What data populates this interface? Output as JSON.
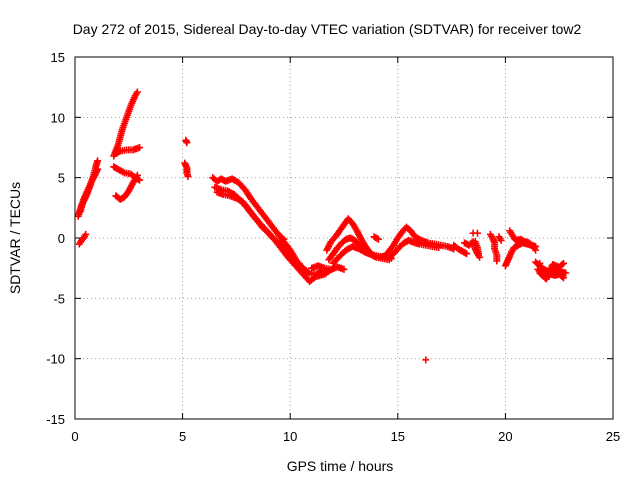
{
  "chart_data": {
    "type": "scatter",
    "title": "Day 272 of 2015, Sidereal Day-to-day VTEC variation (SDTVAR) for receiver tow2",
    "xlabel": "GPS time / hours",
    "ylabel": "SDTVAR / TECUs",
    "xlim": [
      0,
      25
    ],
    "ylim": [
      -15,
      15
    ],
    "xticks": [
      0,
      5,
      10,
      15,
      20,
      25
    ],
    "yticks": [
      -15,
      -10,
      -5,
      0,
      5,
      10,
      15
    ],
    "grid": true,
    "marker": "+",
    "series": [
      {
        "name": "SDTVAR",
        "color": "#ff0000",
        "segments": [
          [
            [
              0.2,
              -0.5
            ],
            [
              0.3,
              -0.2
            ],
            [
              0.4,
              0.0
            ],
            [
              0.5,
              0.3
            ]
          ],
          [
            [
              0.15,
              1.8
            ],
            [
              0.3,
              2.7
            ],
            [
              0.5,
              3.4
            ],
            [
              0.7,
              4.3
            ],
            [
              0.85,
              5.1
            ],
            [
              0.95,
              5.8
            ],
            [
              1.05,
              6.4
            ]
          ],
          [
            [
              0.25,
              2.2
            ],
            [
              0.4,
              3.2
            ],
            [
              0.6,
              4.0
            ],
            [
              0.8,
              4.8
            ],
            [
              0.95,
              5.3
            ],
            [
              1.05,
              5.7
            ]
          ],
          [
            [
              1.8,
              6.8
            ],
            [
              2.0,
              7.7
            ],
            [
              2.2,
              9.0
            ],
            [
              2.4,
              10.0
            ],
            [
              2.6,
              11.0
            ],
            [
              2.8,
              11.8
            ],
            [
              2.9,
              12.1
            ]
          ],
          [
            [
              1.9,
              7.0
            ],
            [
              2.1,
              7.2
            ],
            [
              2.4,
              7.3
            ],
            [
              2.7,
              7.3
            ],
            [
              3.0,
              7.5
            ]
          ],
          [
            [
              1.8,
              5.9
            ],
            [
              2.0,
              5.7
            ],
            [
              2.3,
              5.4
            ],
            [
              2.6,
              5.3
            ],
            [
              2.8,
              5.0
            ],
            [
              3.0,
              4.8
            ]
          ],
          [
            [
              1.9,
              3.5
            ],
            [
              2.1,
              3.2
            ],
            [
              2.3,
              3.4
            ],
            [
              2.5,
              3.9
            ],
            [
              2.7,
              4.6
            ],
            [
              2.9,
              5.2
            ]
          ],
          [
            [
              5.15,
              8.1
            ],
            [
              5.2,
              7.9
            ]
          ],
          [
            [
              5.1,
              6.2
            ],
            [
              5.2,
              5.8
            ],
            [
              5.2,
              5.4
            ],
            [
              5.25,
              5.1
            ]
          ],
          [
            [
              6.4,
              5.0
            ],
            [
              6.6,
              4.7
            ],
            [
              6.8,
              4.9
            ],
            [
              7.0,
              4.7
            ],
            [
              7.3,
              4.9
            ],
            [
              7.6,
              4.6
            ],
            [
              7.9,
              4.0
            ],
            [
              8.2,
              3.2
            ],
            [
              8.5,
              2.5
            ],
            [
              8.8,
              1.8
            ],
            [
              9.1,
              1.1
            ],
            [
              9.4,
              0.4
            ],
            [
              9.7,
              -0.3
            ],
            [
              10.0,
              -1.0
            ],
            [
              10.3,
              -1.9
            ],
            [
              10.6,
              -2.5
            ],
            [
              10.9,
              -2.9
            ],
            [
              11.2,
              -3.0
            ],
            [
              11.5,
              -2.7
            ]
          ],
          [
            [
              6.5,
              4.2
            ],
            [
              6.8,
              4.0
            ],
            [
              7.1,
              3.9
            ],
            [
              7.4,
              3.6
            ],
            [
              7.7,
              3.1
            ],
            [
              8.0,
              2.5
            ],
            [
              8.3,
              1.8
            ],
            [
              8.6,
              1.2
            ],
            [
              8.9,
              0.6
            ],
            [
              9.2,
              0.0
            ],
            [
              9.5,
              -0.5
            ],
            [
              9.8,
              -1.2
            ],
            [
              10.1,
              -1.9
            ],
            [
              10.4,
              -2.6
            ],
            [
              10.7,
              -3.2
            ],
            [
              10.9,
              -3.6
            ],
            [
              11.2,
              -3.2
            ],
            [
              11.6,
              -3.0
            ],
            [
              12.0,
              -2.5
            ]
          ],
          [
            [
              6.6,
              3.8
            ],
            [
              6.9,
              3.6
            ],
            [
              7.2,
              3.5
            ],
            [
              7.5,
              3.3
            ],
            [
              7.8,
              3.0
            ],
            [
              8.1,
              2.3
            ],
            [
              8.4,
              1.6
            ],
            [
              8.7,
              0.9
            ],
            [
              9.0,
              0.4
            ],
            [
              9.3,
              -0.2
            ],
            [
              9.6,
              -0.9
            ],
            [
              9.9,
              -1.6
            ],
            [
              10.2,
              -2.2
            ],
            [
              10.5,
              -2.7
            ],
            [
              10.8,
              -3.0
            ]
          ],
          [
            [
              9.5,
              0.2
            ],
            [
              9.7,
              -0.1
            ]
          ],
          [
            [
              11.0,
              -2.5
            ],
            [
              11.3,
              -2.3
            ],
            [
              11.6,
              -2.5
            ],
            [
              11.9,
              -2.6
            ],
            [
              12.2,
              -2.4
            ],
            [
              12.5,
              -2.6
            ]
          ],
          [
            [
              11.7,
              -1.0
            ],
            [
              11.9,
              -0.3
            ],
            [
              12.1,
              0.1
            ],
            [
              12.3,
              0.6
            ],
            [
              12.5,
              1.1
            ],
            [
              12.7,
              1.6
            ],
            [
              12.9,
              1.2
            ],
            [
              13.1,
              0.6
            ],
            [
              13.3,
              -0.1
            ],
            [
              13.5,
              -0.7
            ],
            [
              13.7,
              -1.2
            ],
            [
              13.9,
              -1.5
            ],
            [
              14.2,
              -1.6
            ],
            [
              14.5,
              -1.4
            ]
          ],
          [
            [
              11.8,
              -1.8
            ],
            [
              12.0,
              -1.3
            ],
            [
              12.2,
              -0.8
            ],
            [
              12.4,
              -0.4
            ],
            [
              12.6,
              -0.1
            ],
            [
              12.8,
              0.0
            ],
            [
              13.0,
              -0.2
            ],
            [
              13.2,
              -0.5
            ],
            [
              13.4,
              -0.9
            ],
            [
              13.6,
              -1.2
            ],
            [
              13.8,
              -1.4
            ],
            [
              14.0,
              -1.6
            ],
            [
              14.3,
              -1.7
            ],
            [
              14.6,
              -1.8
            ]
          ],
          [
            [
              12.0,
              -2.1
            ],
            [
              12.3,
              -1.5
            ],
            [
              12.6,
              -1.0
            ],
            [
              12.9,
              -0.7
            ],
            [
              13.2,
              -0.9
            ],
            [
              13.5,
              -1.2
            ],
            [
              13.8,
              -1.4
            ],
            [
              14.1,
              -1.5
            ],
            [
              14.4,
              -1.6
            ],
            [
              14.7,
              -1.7
            ]
          ],
          [
            [
              14.5,
              -1.3
            ],
            [
              14.8,
              -0.6
            ],
            [
              15.0,
              0.0
            ],
            [
              15.2,
              0.5
            ],
            [
              15.4,
              0.9
            ],
            [
              15.6,
              0.6
            ],
            [
              15.8,
              0.1
            ],
            [
              16.1,
              -0.2
            ],
            [
              16.4,
              -0.4
            ],
            [
              16.7,
              -0.5
            ],
            [
              17.0,
              -0.6
            ],
            [
              17.3,
              -0.7
            ],
            [
              17.6,
              -0.9
            ]
          ],
          [
            [
              14.6,
              -1.7
            ],
            [
              14.9,
              -1.1
            ],
            [
              15.1,
              -0.7
            ],
            [
              15.3,
              -0.4
            ],
            [
              15.5,
              -0.2
            ],
            [
              15.8,
              -0.4
            ],
            [
              16.0,
              -0.5
            ],
            [
              16.3,
              -0.6
            ],
            [
              16.6,
              -0.7
            ],
            [
              16.9,
              -0.8
            ]
          ],
          [
            [
              13.9,
              0.1
            ],
            [
              14.1,
              -0.1
            ]
          ],
          [
            [
              17.6,
              -0.6
            ],
            [
              17.8,
              -0.9
            ],
            [
              18.0,
              -1.1
            ],
            [
              18.2,
              -1.3
            ]
          ],
          [
            [
              18.1,
              -0.4
            ],
            [
              18.3,
              -0.6
            ],
            [
              18.5,
              -0.3
            ],
            [
              18.6,
              -0.9
            ],
            [
              18.7,
              -1.3
            ],
            [
              18.8,
              -1.6
            ]
          ],
          [
            [
              18.6,
              -0.3
            ],
            [
              18.7,
              -0.8
            ],
            [
              18.75,
              -1.3
            ]
          ],
          [
            [
              19.3,
              0.3
            ],
            [
              19.4,
              0.0
            ],
            [
              19.5,
              -0.4
            ],
            [
              19.5,
              -0.9
            ],
            [
              19.6,
              -1.4
            ],
            [
              19.6,
              -1.9
            ]
          ],
          [
            [
              19.7,
              0.1
            ],
            [
              19.8,
              -0.2
            ]
          ],
          [
            [
              20.0,
              -2.3
            ],
            [
              20.1,
              -1.9
            ],
            [
              20.2,
              -1.5
            ],
            [
              20.3,
              -1.1
            ],
            [
              20.4,
              -0.8
            ],
            [
              20.6,
              -0.6
            ],
            [
              20.8,
              -0.4
            ],
            [
              21.0,
              -0.5
            ],
            [
              21.2,
              -0.6
            ],
            [
              21.4,
              -0.7
            ]
          ],
          [
            [
              20.2,
              0.6
            ],
            [
              20.3,
              0.3
            ],
            [
              20.4,
              0.0
            ],
            [
              20.5,
              -0.2
            ],
            [
              20.7,
              -0.1
            ],
            [
              20.9,
              -0.3
            ],
            [
              21.1,
              -0.4
            ],
            [
              21.3,
              -0.7
            ],
            [
              21.4,
              -1.0
            ]
          ],
          [
            [
              21.4,
              -2.0
            ],
            [
              21.6,
              -2.3
            ],
            [
              21.8,
              -2.6
            ],
            [
              22.0,
              -2.8
            ],
            [
              22.2,
              -2.7
            ],
            [
              22.4,
              -2.6
            ],
            [
              22.6,
              -2.8
            ],
            [
              22.8,
              -2.9
            ]
          ],
          [
            [
              21.5,
              -2.6
            ],
            [
              21.7,
              -3.0
            ],
            [
              21.9,
              -3.2
            ],
            [
              22.1,
              -3.0
            ],
            [
              22.3,
              -3.1
            ],
            [
              22.5,
              -3.0
            ],
            [
              22.7,
              -3.3
            ]
          ],
          [
            [
              21.6,
              -2.9
            ],
            [
              21.9,
              -3.4
            ],
            [
              22.2,
              -2.2
            ],
            [
              22.5,
              -2.4
            ],
            [
              22.7,
              -2.1
            ]
          ]
        ],
        "isolated": [
          [
            16.3,
            -10.1
          ],
          [
            18.5,
            0.4
          ],
          [
            18.7,
            0.4
          ],
          [
            21.6,
            -2.1
          ]
        ]
      }
    ]
  }
}
